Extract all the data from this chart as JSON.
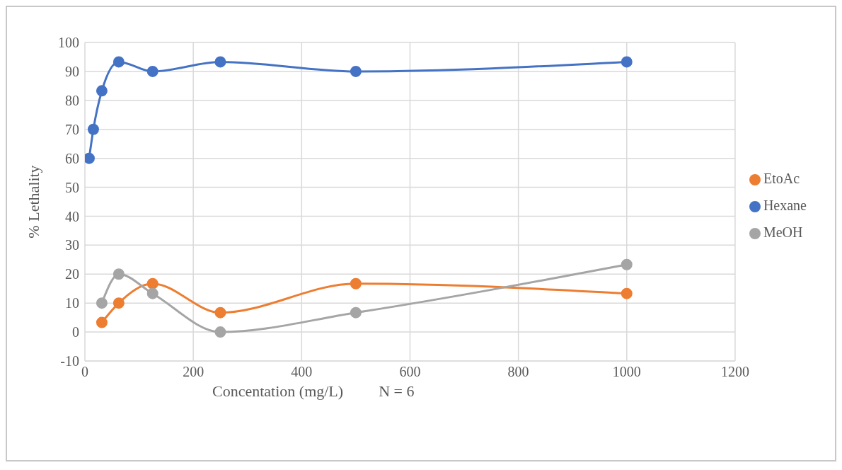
{
  "chart_data": {
    "type": "line",
    "xlabel": "Concentation (mg/L)",
    "ylabel": "% Lethality",
    "annotations": [
      "N = 6"
    ],
    "series": [
      {
        "name": "Hexane",
        "color": "#4472c4",
        "x": [
          7.8,
          15.6,
          31.25,
          62.5,
          125,
          250,
          500,
          1000
        ],
        "values": [
          60,
          70,
          83.3,
          93.3,
          90,
          93.3,
          90,
          93.3
        ]
      },
      {
        "name": "EtoAc",
        "color": "#ed7d31",
        "x": [
          31.25,
          62.5,
          125,
          250,
          500,
          1000
        ],
        "values": [
          3.3,
          10,
          16.7,
          6.7,
          16.7,
          13.3
        ]
      },
      {
        "name": "MeOH",
        "color": "#a5a5a5",
        "x": [
          31.25,
          62.5,
          125,
          250,
          500,
          1000
        ],
        "values": [
          10,
          20,
          13.3,
          0,
          6.7,
          23.3
        ]
      }
    ],
    "xlim": [
      0,
      1200
    ],
    "xticks": [
      0,
      200,
      400,
      600,
      800,
      1000,
      1200
    ],
    "ylim": [
      -10,
      100
    ],
    "yticks": [
      -10,
      0,
      10,
      20,
      30,
      40,
      50,
      60,
      70,
      80,
      90,
      100
    ],
    "grid": true,
    "legend": "right",
    "marker": "circle",
    "line_style": "solid"
  }
}
